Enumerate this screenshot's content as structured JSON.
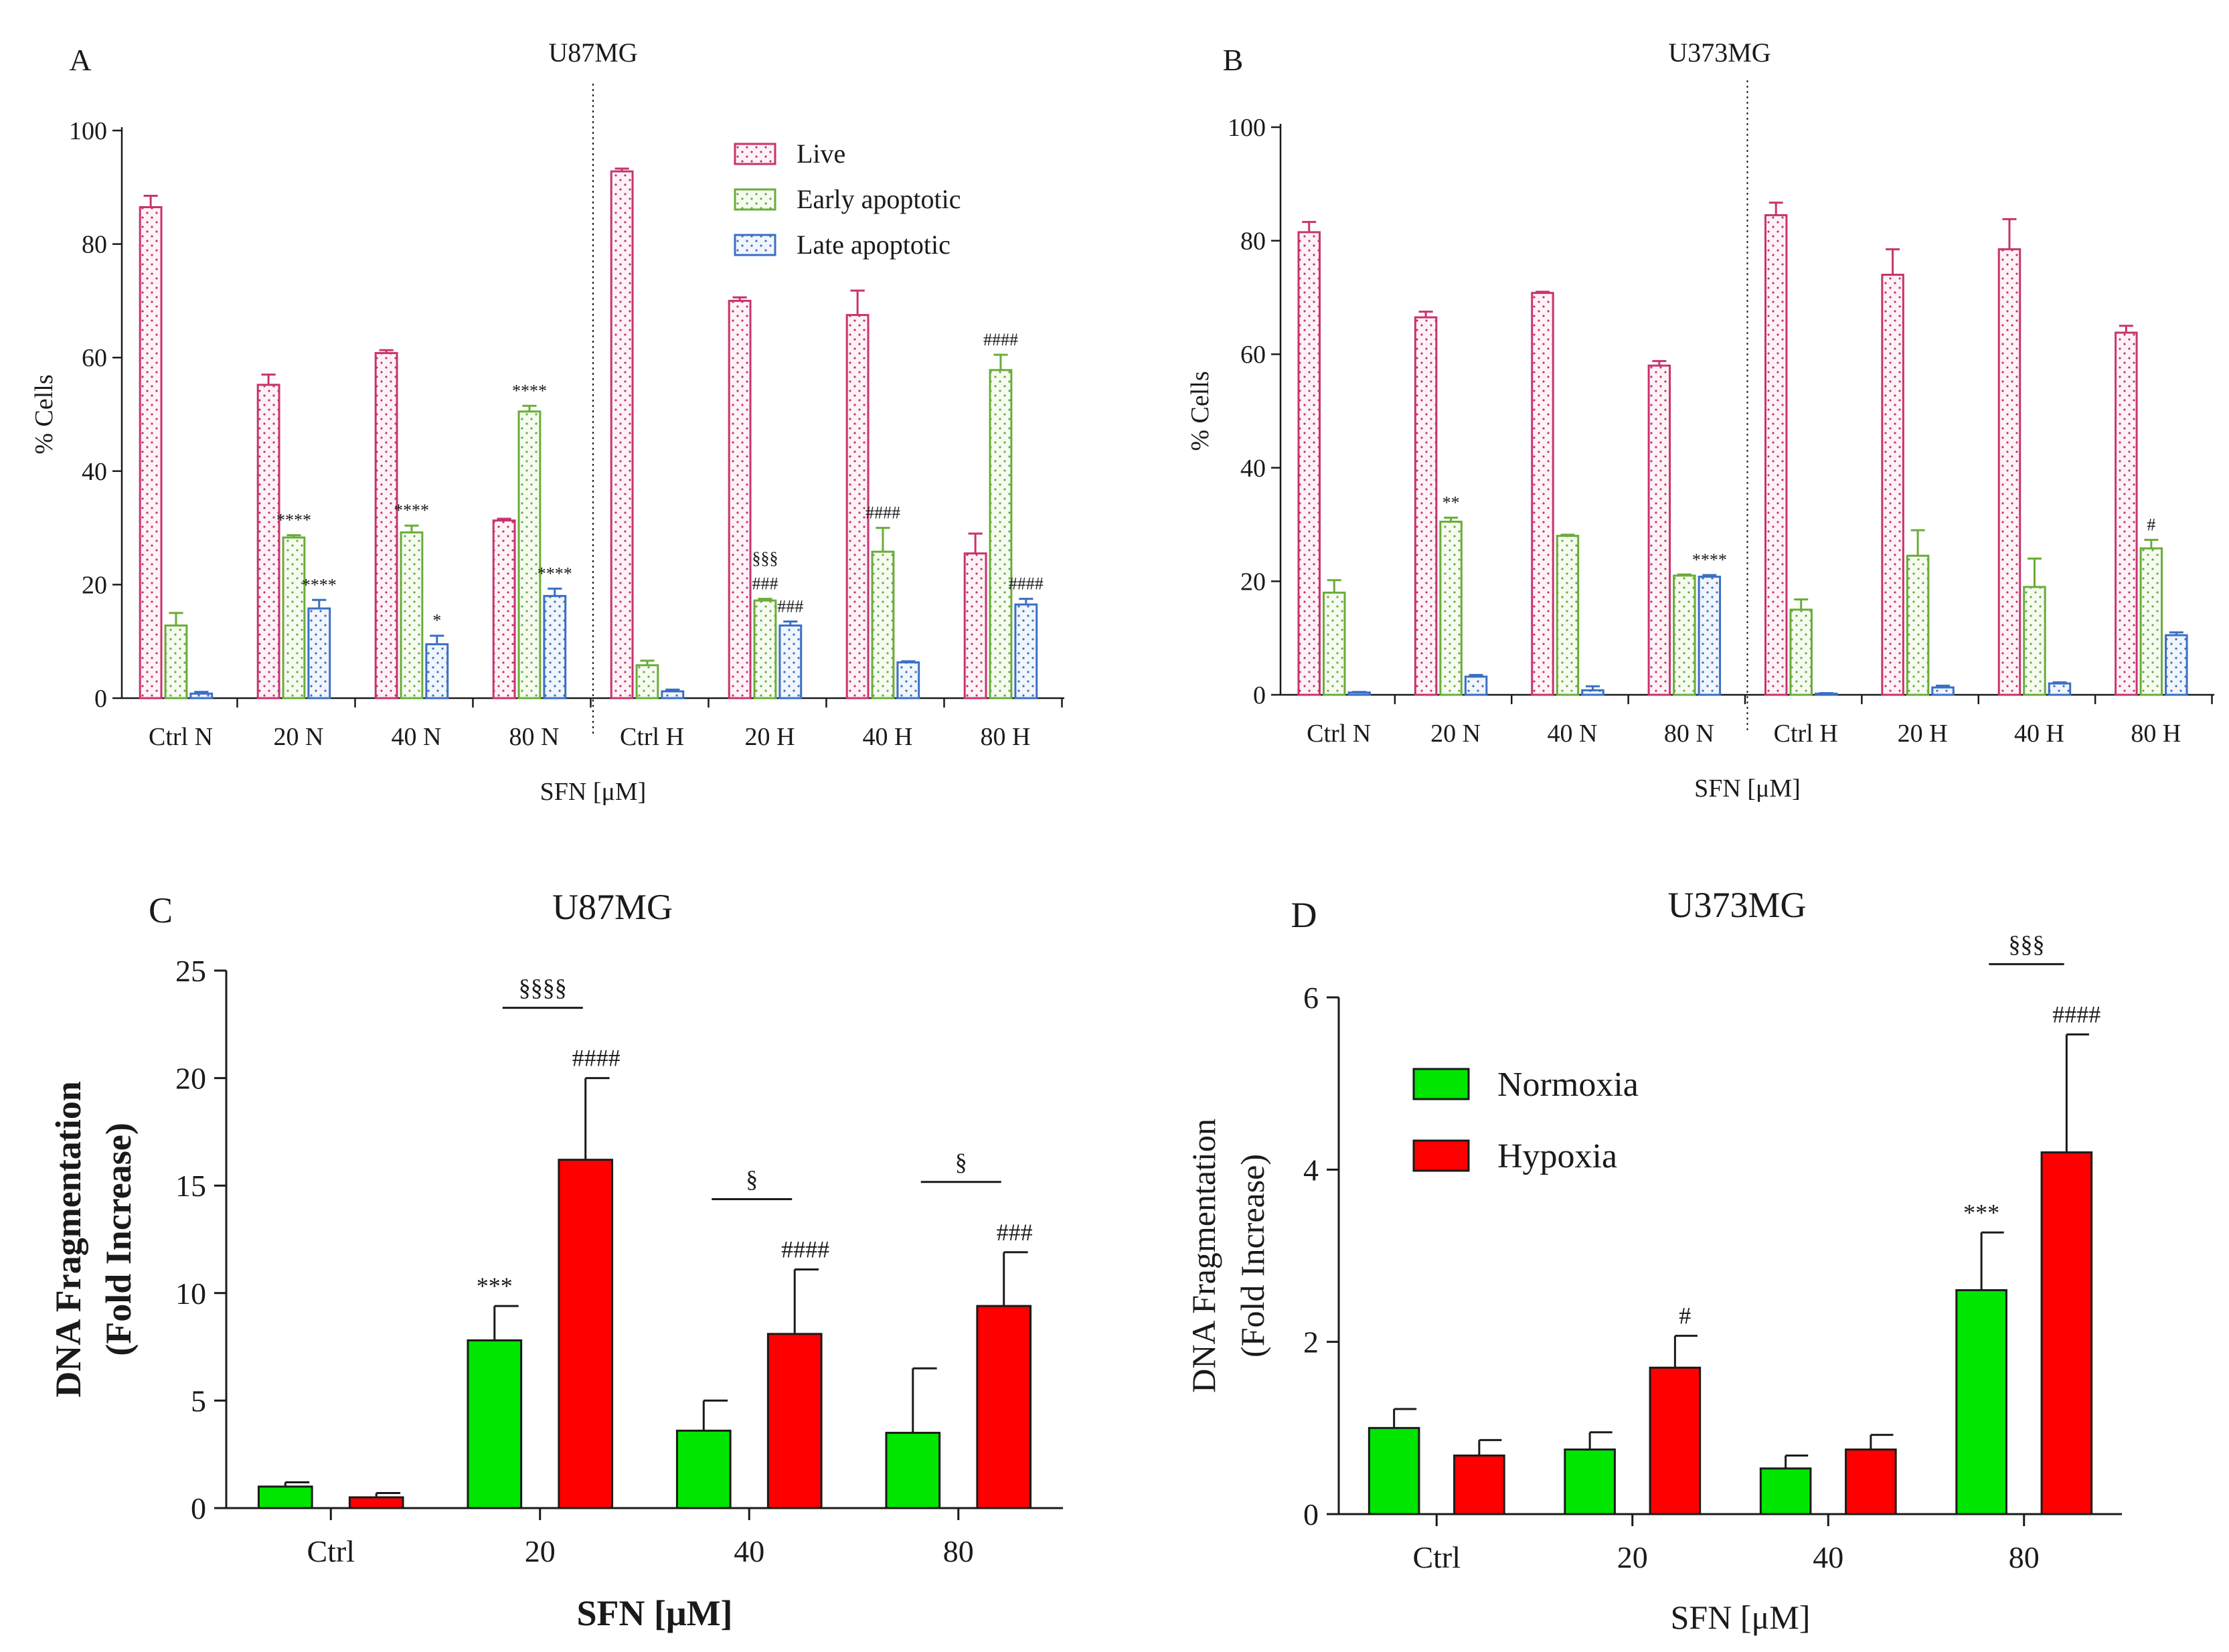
{
  "colors": {
    "live": "#c8336e",
    "early": "#6aac3a",
    "late": "#3a6fc4",
    "normoxia": "#00e600",
    "hypoxia": "#ff0000",
    "axis": "#1a1a1a"
  },
  "chart_data": [
    {
      "id": "A",
      "panel_label": "A",
      "type": "bar",
      "title": "U87MG",
      "xlabel": "SFN [μM]",
      "ylabel": "% Cells",
      "ylim": [
        0,
        100
      ],
      "yticks": [
        0,
        20,
        40,
        60,
        80,
        100
      ],
      "categories": [
        "Ctrl N",
        "20 N",
        "40 N",
        "80 N",
        "Ctrl H",
        "20 H",
        "40 H",
        "80 H"
      ],
      "divider_after_index": 3,
      "legend": "top-right",
      "grid": false,
      "series": [
        {
          "name": "Live",
          "key": "live",
          "values": [
            86.5,
            55.2,
            60.8,
            31.3,
            92.8,
            70.0,
            67.5,
            25.5
          ],
          "errors": [
            2.0,
            1.8,
            0.5,
            0.3,
            0.5,
            0.6,
            4.3,
            3.5
          ],
          "annotations": [
            "",
            "",
            "",
            "",
            "",
            "",
            "",
            ""
          ]
        },
        {
          "name": "Early apoptotic",
          "key": "early",
          "values": [
            12.8,
            28.3,
            29.2,
            50.5,
            5.8,
            17.2,
            25.8,
            57.8
          ],
          "errors": [
            2.2,
            0.4,
            1.2,
            1.0,
            0.8,
            0.3,
            4.2,
            2.7
          ],
          "annotations": [
            "",
            "****",
            "****",
            "****",
            "",
            "§§§\n###",
            "####",
            "####"
          ]
        },
        {
          "name": "Late apoptotic",
          "key": "late",
          "values": [
            0.8,
            15.8,
            9.5,
            18.0,
            1.2,
            12.8,
            6.3,
            16.5
          ],
          "errors": [
            0.3,
            1.5,
            1.5,
            1.3,
            0.3,
            0.7,
            0.2,
            1.0
          ],
          "annotations": [
            "",
            "****",
            "*",
            "****",
            "",
            "###",
            "",
            "####"
          ]
        }
      ]
    },
    {
      "id": "B",
      "panel_label": "B",
      "type": "bar",
      "title": "U373MG",
      "xlabel": "SFN [μM]",
      "ylabel": "% Cells",
      "ylim": [
        0,
        100
      ],
      "yticks": [
        0,
        20,
        40,
        60,
        80,
        100
      ],
      "categories": [
        "Ctrl N",
        "20 N",
        "40 N",
        "80 N",
        "Ctrl H",
        "20 H",
        "40 H",
        "80 H"
      ],
      "divider_after_index": 3,
      "grid": false,
      "series": [
        {
          "name": "Live",
          "key": "live",
          "values": [
            81.5,
            66.5,
            70.8,
            58.0,
            84.5,
            74.0,
            78.5,
            63.8
          ],
          "errors": [
            1.8,
            1.0,
            0.2,
            0.8,
            2.2,
            4.5,
            5.3,
            1.2
          ],
          "annotations": [
            "",
            "",
            "",
            "",
            "",
            "",
            "",
            ""
          ]
        },
        {
          "name": "Early apoptotic",
          "key": "early",
          "values": [
            18.0,
            30.5,
            28.0,
            21.0,
            15.0,
            24.5,
            19.0,
            25.8
          ],
          "errors": [
            2.2,
            0.7,
            0.2,
            0.2,
            1.8,
            4.5,
            5.0,
            1.5
          ],
          "annotations": [
            "",
            "**",
            "",
            "",
            "",
            "",
            "",
            "#"
          ]
        },
        {
          "name": "Late apoptotic",
          "key": "late",
          "values": [
            0.4,
            3.2,
            0.8,
            20.8,
            0.2,
            1.3,
            2.0,
            10.5
          ],
          "errors": [
            0.1,
            0.3,
            0.7,
            0.3,
            0.1,
            0.3,
            0.2,
            0.5
          ],
          "annotations": [
            "",
            "",
            "",
            "****",
            "",
            "",
            "",
            ""
          ]
        }
      ]
    },
    {
      "id": "C",
      "panel_label": "C",
      "type": "bar",
      "title": "U87MG",
      "xlabel": "SFN [μM]",
      "ylabel": [
        "DNA Fragmentation",
        "(Fold Increase)"
      ],
      "ylim": [
        0,
        25
      ],
      "yticks": [
        0,
        5,
        10,
        15,
        20,
        25
      ],
      "categories": [
        "Ctrl",
        "20",
        "40",
        "80"
      ],
      "grid": false,
      "series": [
        {
          "name": "Normoxia",
          "key": "normoxia",
          "values": [
            1.0,
            7.8,
            3.6,
            3.5
          ],
          "errors": [
            0.2,
            1.6,
            1.4,
            3.0
          ],
          "annotations": [
            "",
            "***",
            "",
            ""
          ]
        },
        {
          "name": "Hypoxia",
          "key": "hypoxia",
          "values": [
            0.5,
            16.2,
            8.1,
            9.4
          ],
          "errors": [
            0.2,
            3.8,
            3.0,
            2.5
          ],
          "annotations": [
            "",
            "####",
            "####",
            "###"
          ]
        }
      ],
      "brackets": [
        "",
        "§§§§",
        "§",
        "§"
      ]
    },
    {
      "id": "D",
      "panel_label": "D",
      "type": "bar",
      "title": "U373MG",
      "xlabel": "SFN [μM]",
      "ylabel": [
        "DNA Fragmentation",
        "(Fold Increase)"
      ],
      "ylim": [
        0,
        6
      ],
      "yticks": [
        0,
        2,
        4,
        6
      ],
      "categories": [
        "Ctrl",
        "20",
        "40",
        "80"
      ],
      "legend": "upper-left",
      "grid": false,
      "series": [
        {
          "name": "Normoxia",
          "key": "normoxia",
          "values": [
            1.0,
            0.75,
            0.53,
            2.6
          ],
          "errors": [
            0.22,
            0.2,
            0.15,
            0.67
          ],
          "annotations": [
            "",
            "",
            "",
            "***"
          ]
        },
        {
          "name": "Hypoxia",
          "key": "hypoxia",
          "values": [
            0.68,
            1.7,
            0.75,
            4.2
          ],
          "errors": [
            0.18,
            0.37,
            0.17,
            1.37
          ],
          "annotations": [
            "",
            "#",
            "",
            "####"
          ]
        }
      ],
      "brackets": [
        "",
        "",
        "",
        "§§§"
      ]
    }
  ]
}
